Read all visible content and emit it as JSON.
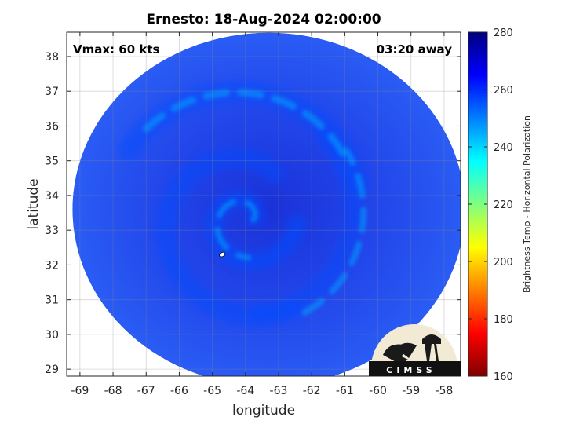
{
  "chart_data": {
    "type": "heatmap",
    "title": "Ernesto: 18-Aug-2024 02:00:00",
    "xlabel": "longitude",
    "ylabel": "latitude",
    "xlim": [
      -69.4,
      -57.5
    ],
    "ylim": [
      28.8,
      38.7
    ],
    "x_ticks": [
      -69,
      -68,
      -67,
      -66,
      -65,
      -64,
      -63,
      -62,
      -61,
      -60,
      -59,
      -58
    ],
    "y_ticks": [
      29,
      30,
      31,
      32,
      33,
      34,
      35,
      36,
      37,
      38
    ],
    "grid": true,
    "colorbar": {
      "label": "Brightness Temp - Horizontal Polarization",
      "range": [
        160,
        280
      ],
      "ticks": [
        160,
        180,
        200,
        220,
        240,
        260,
        280
      ],
      "colormap": "jet"
    },
    "annotations": {
      "vmax": "Vmax: 60 kts",
      "time_offset": "03:20 away"
    },
    "storm_center": {
      "lon": -64.0,
      "lat": 33.3
    },
    "swath_center": {
      "lon": -63.3,
      "lat": 33.6
    },
    "swath_typical_tb": 262,
    "rain_band_min_tb": 238
  },
  "logo": {
    "text": "CIMSS"
  },
  "colors": {
    "background_dark": "#1a3ae0",
    "background_mid": "#2550f0",
    "band_light": "#3a78ff",
    "band_brightest": "#5ab0ff"
  }
}
